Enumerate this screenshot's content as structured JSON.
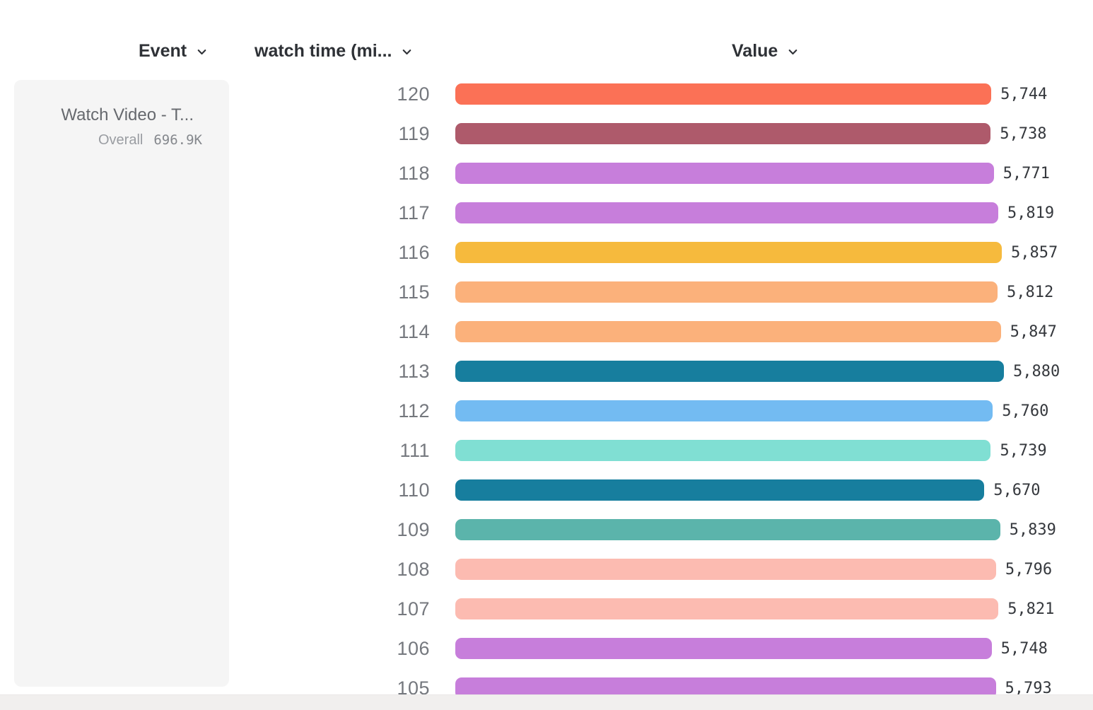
{
  "header": {
    "event_label": "Event",
    "watch_time_label": "watch time (mi...",
    "value_label": "Value"
  },
  "event_card": {
    "title": "Watch Video - T...",
    "overall_label": "Overall",
    "overall_value": "696.9K"
  },
  "chart_data": {
    "type": "bar",
    "orientation": "horizontal",
    "title": "",
    "xlabel": "Value",
    "ylabel": "watch time (mi...)",
    "categories": [
      "120",
      "119",
      "118",
      "117",
      "116",
      "115",
      "114",
      "113",
      "112",
      "111",
      "110",
      "109",
      "108",
      "107",
      "106",
      "105"
    ],
    "values": [
      5744,
      5738,
      5771,
      5819,
      5857,
      5812,
      5847,
      5880,
      5760,
      5739,
      5670,
      5839,
      5796,
      5821,
      5748,
      5793
    ],
    "bar_colors": [
      "#FB7156",
      "#AE5A6B",
      "#C77EDB",
      "#C77EDB",
      "#F6BA3D",
      "#FBB17B",
      "#FBB17B",
      "#177E9E",
      "#73BBF2",
      "#80DFD3",
      "#177E9E",
      "#5BB4AB",
      "#FCBBB1",
      "#FCBBB1",
      "#C77EDB",
      "#C77EDB"
    ],
    "xlim": [
      0,
      5880
    ],
    "grid": false,
    "legend": false,
    "value_format": "thousands-comma"
  },
  "colors": {
    "page_bg": "#ffffff",
    "card_bg": "#f5f5f5",
    "footer_band": "#f1efee",
    "header_text": "#2e3136",
    "row_label": "#75787e",
    "value_text": "#35383d"
  }
}
